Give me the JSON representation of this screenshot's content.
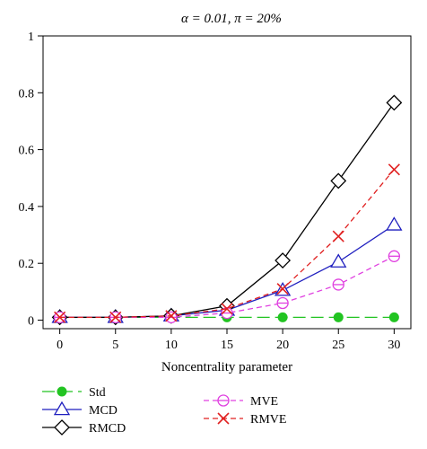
{
  "chart_data": {
    "type": "line",
    "title": "α = 0.01, π = 20%",
    "xlabel": "Noncentrality parameter",
    "ylabel": "",
    "x": [
      0,
      5,
      10,
      15,
      20,
      25,
      30
    ],
    "xticks": [
      0,
      5,
      10,
      15,
      20,
      25,
      30
    ],
    "yticks": [
      0,
      0.2,
      0.4,
      0.6,
      0.8,
      1
    ],
    "ytick_labels": [
      "0",
      "0.2",
      "0.4",
      "0.6",
      "0.8",
      "1"
    ],
    "xlim": [
      -1.5,
      31.5
    ],
    "ylim": [
      -0.03,
      1.0
    ],
    "grid": false,
    "legend_position": "bottom",
    "series": [
      {
        "name": "Std",
        "values": [
          0.01,
          0.01,
          0.01,
          0.01,
          0.01,
          0.01,
          0.01
        ],
        "color": "#22c422",
        "dash": "long-dash",
        "marker": "filled-circle"
      },
      {
        "name": "MCD",
        "values": [
          0.01,
          0.01,
          0.015,
          0.035,
          0.105,
          0.205,
          0.335
        ],
        "color": "#1f1fbf",
        "dash": "solid",
        "marker": "triangle"
      },
      {
        "name": "RMCD",
        "values": [
          0.01,
          0.01,
          0.015,
          0.05,
          0.21,
          0.49,
          0.765
        ],
        "color": "#000000",
        "dash": "solid",
        "marker": "diamond"
      },
      {
        "name": "MVE",
        "values": [
          0.01,
          0.01,
          0.01,
          0.025,
          0.06,
          0.125,
          0.225
        ],
        "color": "#e040e0",
        "dash": "dashed",
        "marker": "circle-bar"
      },
      {
        "name": "RMVE",
        "values": [
          0.01,
          0.01,
          0.015,
          0.04,
          0.11,
          0.295,
          0.53
        ],
        "color": "#e02020",
        "dash": "dashed",
        "marker": "x"
      }
    ]
  }
}
